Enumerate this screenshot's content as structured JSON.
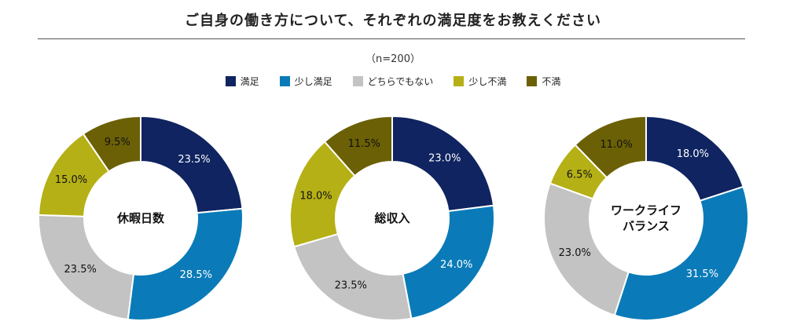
{
  "title": "ご自身の働き方について、それぞれの満足度をお教えください",
  "n_label": "（n=200）",
  "chart_data": {
    "type": "pie",
    "categories": [
      "満足",
      "少し満足",
      "どちらでもない",
      "少し不満",
      "不満"
    ],
    "colors": [
      "#0f2460",
      "#0a7bb8",
      "#c3c3c3",
      "#b5b016",
      "#6b6005"
    ],
    "charts": [
      {
        "title": "休暇日数",
        "values": [
          23.5,
          28.5,
          23.5,
          15.0,
          9.5
        ],
        "labels": [
          "23.5%",
          "28.5%",
          "23.5%",
          "15.0%",
          "9.5%"
        ]
      },
      {
        "title": "総収入",
        "values": [
          23.0,
          24.0,
          23.5,
          18.0,
          11.5
        ],
        "labels": [
          "23.0%",
          "24.0%",
          "23.5%",
          "18.0%",
          "11.5%"
        ]
      },
      {
        "title": "ワークライフ\nバランス",
        "values": [
          18.0,
          31.5,
          23.0,
          6.5,
          11.0
        ],
        "labels": [
          "18.0%",
          "31.5%",
          "23.0%",
          "6.5%",
          "11.0%"
        ]
      }
    ]
  }
}
